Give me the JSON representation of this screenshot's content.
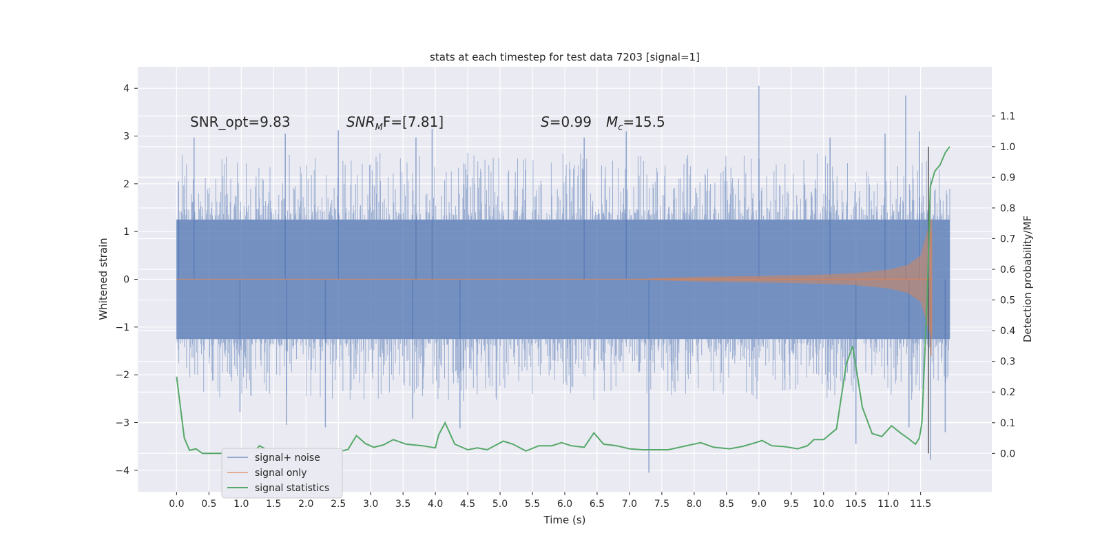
{
  "chart_data": {
    "type": "line",
    "title": "stats at each timestep for test data 7203 [signal=1]",
    "xlabel": "Time (s)",
    "ylabel": "Whitened strain",
    "ylabel_right": "Detection probability/MF",
    "xlim": [
      -0.6,
      12.6
    ],
    "ylim": [
      -4.45,
      4.45
    ],
    "ylim_right": [
      -0.125,
      1.26
    ],
    "xticks": [
      "0.0",
      "0.5",
      "1.0",
      "1.5",
      "2.0",
      "2.5",
      "3.0",
      "3.5",
      "4.0",
      "4.5",
      "5.0",
      "5.5",
      "6.0",
      "6.5",
      "7.0",
      "7.5",
      "8.0",
      "8.5",
      "9.0",
      "9.5",
      "10.0",
      "10.5",
      "11.0",
      "11.5"
    ],
    "yticks": [
      "4",
      "3",
      "2",
      "1",
      "0",
      "−1",
      "−2",
      "−3",
      "−4"
    ],
    "yticks_right": [
      "1.1",
      "1.0",
      "0.9",
      "0.8",
      "0.7",
      "0.6",
      "0.5",
      "0.4",
      "0.3",
      "0.2",
      "0.1",
      "0.0"
    ],
    "grid": true,
    "legend_position": "lower-left",
    "annotations": {
      "snr_opt": "SNR_opt=9.83",
      "snr_mf_prefix": "SNR",
      "snr_mf_sub": "M",
      "snr_mf_rest": "F=[7.81]",
      "s_var": "S",
      "s_rest": "=0.99",
      "mc_var": "M",
      "mc_sub": "c",
      "mc_rest": "=15.5"
    },
    "merger_time": 11.62,
    "series": [
      {
        "name": "signal+ noise",
        "color": "#4c72b0",
        "t_end": 11.95,
        "envelope_typical": 1.25,
        "spikes": [
          [
            0.03,
            2.05
          ],
          [
            0.27,
            2.97
          ],
          [
            1.68,
            3.05
          ],
          [
            2.5,
            3.12
          ],
          [
            3.7,
            2.97
          ],
          [
            3.95,
            3.15
          ],
          [
            6.3,
            2.97
          ],
          [
            6.95,
            3.1
          ],
          [
            9.0,
            4.05
          ],
          [
            10.1,
            2.97
          ],
          [
            10.95,
            3.05
          ],
          [
            11.27,
            3.85
          ],
          [
            11.48,
            3.1
          ],
          [
            0.98,
            -2.78
          ],
          [
            1.7,
            -3.05
          ],
          [
            2.3,
            -3.1
          ],
          [
            3.65,
            -2.92
          ],
          [
            4.38,
            -3.12
          ],
          [
            7.3,
            -4.05
          ],
          [
            10.5,
            -3.45
          ],
          [
            11.32,
            -3.1
          ],
          [
            11.65,
            -3.78
          ],
          [
            11.88,
            -3.2
          ]
        ]
      },
      {
        "name": "signal only",
        "color": "#dd8452",
        "t_end": 11.68,
        "points": [
          [
            0,
            0.0
          ],
          [
            7,
            0.0
          ],
          [
            8,
            0.05
          ],
          [
            9,
            0.07
          ],
          [
            10,
            0.1
          ],
          [
            10.5,
            0.13
          ],
          [
            11,
            0.2
          ],
          [
            11.3,
            0.3
          ],
          [
            11.5,
            0.5
          ],
          [
            11.62,
            1.1
          ],
          [
            11.68,
            1.3
          ]
        ]
      },
      {
        "name": "signal statistics",
        "color": "#55a868",
        "points": [
          [
            0.0,
            0.25
          ],
          [
            0.12,
            0.05
          ],
          [
            0.2,
            0.01
          ],
          [
            0.3,
            0.015
          ],
          [
            0.4,
            0.0
          ],
          [
            0.55,
            0.0
          ],
          [
            0.8,
            0.0
          ],
          [
            1.0,
            0.002
          ],
          [
            1.2,
            0.005
          ],
          [
            1.28,
            0.025
          ],
          [
            1.4,
            0.012
          ],
          [
            1.6,
            0.015
          ],
          [
            1.8,
            0.005
          ],
          [
            2.2,
            0.007
          ],
          [
            2.5,
            0.005
          ],
          [
            2.65,
            0.013
          ],
          [
            2.78,
            0.058
          ],
          [
            2.92,
            0.032
          ],
          [
            3.05,
            0.02
          ],
          [
            3.2,
            0.028
          ],
          [
            3.35,
            0.045
          ],
          [
            3.55,
            0.03
          ],
          [
            3.8,
            0.025
          ],
          [
            4.0,
            0.018
          ],
          [
            4.05,
            0.06
          ],
          [
            4.15,
            0.1
          ],
          [
            4.3,
            0.03
          ],
          [
            4.5,
            0.012
          ],
          [
            4.65,
            0.018
          ],
          [
            4.8,
            0.012
          ],
          [
            5.05,
            0.04
          ],
          [
            5.2,
            0.03
          ],
          [
            5.4,
            0.008
          ],
          [
            5.6,
            0.025
          ],
          [
            5.8,
            0.025
          ],
          [
            5.95,
            0.035
          ],
          [
            6.1,
            0.025
          ],
          [
            6.3,
            0.02
          ],
          [
            6.45,
            0.067
          ],
          [
            6.6,
            0.03
          ],
          [
            6.8,
            0.025
          ],
          [
            7.0,
            0.015
          ],
          [
            7.2,
            0.012
          ],
          [
            7.6,
            0.012
          ],
          [
            8.1,
            0.035
          ],
          [
            8.3,
            0.02
          ],
          [
            8.55,
            0.015
          ],
          [
            8.75,
            0.023
          ],
          [
            8.95,
            0.035
          ],
          [
            9.05,
            0.042
          ],
          [
            9.2,
            0.025
          ],
          [
            9.4,
            0.022
          ],
          [
            9.6,
            0.015
          ],
          [
            9.75,
            0.025
          ],
          [
            9.85,
            0.045
          ],
          [
            10.0,
            0.045
          ],
          [
            10.2,
            0.08
          ],
          [
            10.35,
            0.29
          ],
          [
            10.45,
            0.35
          ],
          [
            10.6,
            0.15
          ],
          [
            10.75,
            0.065
          ],
          [
            10.9,
            0.055
          ],
          [
            11.05,
            0.09
          ],
          [
            11.2,
            0.065
          ],
          [
            11.3,
            0.05
          ],
          [
            11.42,
            0.03
          ],
          [
            11.48,
            0.05
          ],
          [
            11.52,
            0.1
          ],
          [
            11.6,
            0.5
          ],
          [
            11.65,
            0.87
          ],
          [
            11.72,
            0.92
          ],
          [
            11.8,
            0.94
          ],
          [
            11.88,
            0.98
          ],
          [
            11.95,
            1.0
          ]
        ]
      }
    ]
  }
}
